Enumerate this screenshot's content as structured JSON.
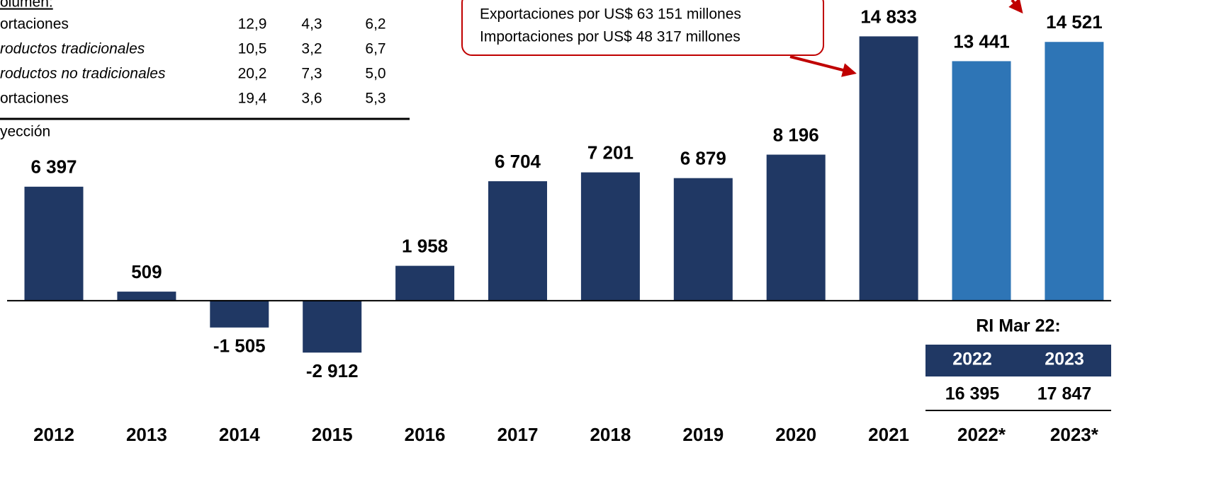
{
  "chart_data": {
    "type": "bar",
    "categories": [
      "2012",
      "2013",
      "2014",
      "2015",
      "2016",
      "2017",
      "2018",
      "2019",
      "2020",
      "2021",
      "2022*",
      "2023*"
    ],
    "values": [
      6397,
      509,
      -1505,
      -2912,
      1958,
      6704,
      7201,
      6879,
      8196,
      14833,
      13441,
      14521
    ],
    "value_labels": [
      "6 397",
      "509",
      "-1 505",
      "-2 912",
      "1 958",
      "6 704",
      "7 201",
      "6 879",
      "8 196",
      "14 833",
      "13 441",
      "14 521"
    ],
    "colors": [
      "#203864",
      "#203864",
      "#203864",
      "#203864",
      "#203864",
      "#203864",
      "#203864",
      "#203864",
      "#203864",
      "#203864",
      "#2e75b6",
      "#2e75b6"
    ],
    "ylim": [
      -6000,
      16000
    ],
    "annotation": [
      "Exportaciones por US$ 63 151 millones",
      "Importaciones por US$ 48 317  millones"
    ]
  },
  "inset_table": {
    "heading": "olumen:",
    "rows": [
      [
        "ortaciones",
        "12,9",
        "4,3",
        "6,2"
      ],
      [
        "roductos tradicionales",
        "10,5",
        "3,2",
        "6,7"
      ],
      [
        "roductos no tradicionales",
        "20,2",
        "7,3",
        "5,0"
      ],
      [
        "ortaciones",
        "19,4",
        "3,6",
        "5,3"
      ]
    ],
    "note": "yección"
  },
  "ri_table": {
    "title": "RI Mar 22:",
    "columns": [
      "2022",
      "2023"
    ],
    "values": [
      "16 395",
      "17 847"
    ]
  }
}
